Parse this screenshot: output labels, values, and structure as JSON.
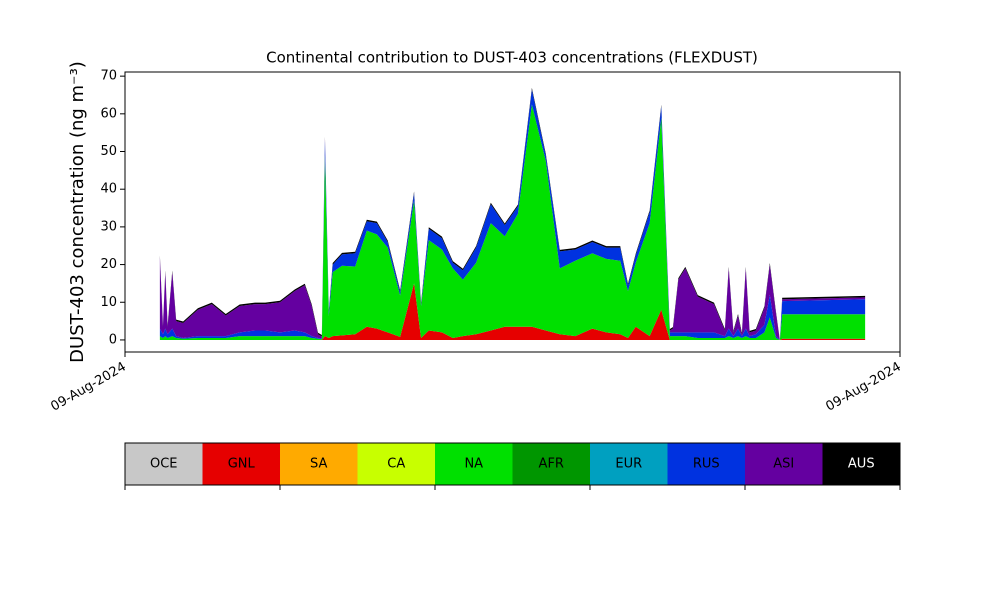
{
  "chart_data": {
    "type": "stacked_area",
    "title": "Continental contribution to DUST-403 concentrations (FLEXDUST)",
    "ylabel": "DUST-403 concentration (ng m⁻³)",
    "xlim": [
      0,
      100
    ],
    "xticks": [
      {
        "value": 0,
        "label": "09-Aug-2024"
      },
      {
        "value": 100,
        "label": "09-Aug-2024"
      }
    ],
    "ylim": [
      -3.2,
      71.1
    ],
    "yticks": [
      0,
      10,
      20,
      30,
      40,
      50,
      60,
      70
    ],
    "x": [
      4.5,
      4.9,
      5.2,
      5.5,
      6.1,
      6.6,
      7.5,
      9.4,
      11.2,
      13.0,
      14.8,
      16.8,
      18.1,
      20.0,
      21.9,
      23.2,
      24.1,
      24.9,
      25.4,
      25.8,
      26.3,
      26.8,
      28.0,
      29.7,
      31.2,
      32.5,
      33.9,
      35.5,
      37.3,
      38.2,
      39.2,
      40.9,
      42.3,
      43.6,
      45.3,
      47.2,
      49.0,
      50.7,
      52.5,
      54.3,
      56.1,
      58.1,
      60.3,
      62.1,
      63.9,
      64.9,
      65.9,
      67.7,
      69.2,
      70.3,
      70.7,
      71.4,
      72.3,
      73.9,
      76.0,
      77.4,
      77.9,
      78.5,
      79.1,
      79.6,
      80.1,
      80.6,
      81.4,
      82.5,
      83.2,
      84.0,
      84.5,
      84.8,
      95.5
    ],
    "series": [
      {
        "name": "OCE",
        "color": "#c8c8c8",
        "values": [
          0,
          0,
          0,
          0,
          0,
          0,
          0,
          0,
          0,
          0,
          0,
          0,
          0,
          0,
          0,
          0,
          0,
          0,
          0,
          0,
          0,
          0,
          0,
          0,
          0,
          0,
          0,
          0,
          0,
          0,
          0,
          0,
          0,
          0,
          0,
          0,
          0,
          0,
          0,
          0,
          0,
          0,
          0,
          0,
          0,
          0,
          0,
          0,
          0,
          0,
          0,
          0,
          0,
          0,
          0,
          0,
          0,
          0,
          0,
          0,
          0,
          0,
          0,
          0,
          0,
          0,
          0,
          0,
          0
        ]
      },
      {
        "name": "GNL",
        "color": "#e60000",
        "values": [
          0,
          0,
          0,
          0,
          0,
          0,
          0,
          0,
          0,
          0,
          0,
          0,
          0,
          0,
          0,
          0,
          0,
          0,
          0,
          1,
          0.5,
          1,
          1.2,
          1.5,
          3.5,
          3,
          2,
          0.8,
          15,
          0.5,
          2.5,
          2,
          0.5,
          1,
          1.5,
          2.5,
          3.5,
          3.5,
          3.5,
          2.5,
          1.5,
          1,
          3,
          2,
          1.5,
          0.5,
          3.5,
          1,
          8,
          0,
          0,
          0,
          0,
          0,
          0,
          0,
          0,
          0,
          0,
          0,
          0,
          0,
          0,
          0,
          0,
          0,
          0,
          0.3,
          0.3
        ]
      },
      {
        "name": "SA",
        "color": "#ffaa00",
        "values": [
          0,
          0,
          0,
          0,
          0,
          0,
          0,
          0,
          0,
          0,
          0,
          0,
          0,
          0,
          0,
          0,
          0,
          0,
          0,
          0,
          0,
          0,
          0,
          0,
          0,
          0,
          0,
          0,
          0,
          0,
          0,
          0,
          0,
          0,
          0,
          0,
          0,
          0,
          0,
          0,
          0,
          0,
          0,
          0,
          0,
          0,
          0,
          0,
          0,
          0,
          0,
          0,
          0,
          0,
          0,
          0,
          0,
          0,
          0,
          0,
          0,
          0,
          0,
          0,
          0,
          0,
          0,
          0,
          0
        ]
      },
      {
        "name": "CA",
        "color": "#c8ff00",
        "values": [
          0,
          0,
          0,
          0,
          0,
          0,
          0,
          0,
          0,
          0,
          0,
          0,
          0,
          0,
          0,
          0,
          0,
          0,
          0,
          0,
          0,
          0,
          0,
          0,
          0,
          0,
          0,
          0,
          0,
          0,
          0,
          0,
          0,
          0,
          0,
          0,
          0,
          0,
          0,
          0,
          0,
          0,
          0,
          0,
          0,
          0,
          0,
          0,
          0,
          0,
          0,
          0,
          0,
          0,
          0,
          0,
          0,
          0,
          0,
          0,
          0,
          0,
          0,
          0,
          0,
          0,
          0,
          0,
          0
        ]
      },
      {
        "name": "NA",
        "color": "#00e000",
        "values": [
          1,
          0.5,
          1,
          0.5,
          1,
          0.5,
          0.3,
          0.5,
          0.5,
          0.5,
          1,
          1,
          1,
          1,
          1,
          1,
          0.5,
          0.3,
          0.2,
          48,
          6,
          17,
          18.5,
          18,
          25.5,
          25,
          22.5,
          11,
          22,
          8.5,
          24,
          22,
          18.5,
          15,
          19,
          28.5,
          24,
          30,
          59,
          45,
          17.5,
          20,
          20,
          19.5,
          19.5,
          12.5,
          17,
          30,
          51,
          1,
          1,
          1,
          1,
          0.5,
          0.5,
          0.5,
          1,
          0.5,
          1,
          0.5,
          1,
          0.5,
          0.5,
          2,
          6,
          0.5,
          0,
          6.5,
          6.5
        ]
      },
      {
        "name": "AFR",
        "color": "#009600",
        "values": [
          0,
          0,
          0,
          0,
          0,
          0,
          0,
          0,
          0,
          0,
          0,
          0,
          0,
          0,
          0,
          0,
          0,
          0,
          0,
          0,
          0,
          0,
          0,
          0,
          0,
          0,
          0,
          0,
          0,
          0,
          0,
          0,
          0,
          0,
          0,
          0,
          0,
          0,
          0,
          0,
          0,
          0,
          0,
          0,
          0,
          0,
          0,
          0,
          0,
          0,
          0,
          0,
          0,
          0,
          0,
          0,
          0,
          0,
          0,
          0,
          0,
          0,
          0,
          0,
          0,
          0,
          0,
          0,
          0
        ]
      },
      {
        "name": "EUR",
        "color": "#00a0c0",
        "values": [
          0,
          0,
          0,
          0,
          0,
          0,
          0,
          0,
          0,
          0,
          0,
          0,
          0,
          0,
          0,
          0,
          0,
          0,
          0,
          0,
          0,
          0,
          0,
          0,
          0,
          0,
          0,
          0,
          0,
          0,
          0,
          0,
          0,
          0,
          0,
          0,
          0,
          0,
          0,
          0,
          0,
          0,
          0,
          0,
          0,
          0,
          0,
          0,
          0,
          0,
          0,
          0,
          0,
          0,
          0,
          0,
          0,
          0,
          0,
          0,
          0,
          0,
          0,
          0,
          0,
          0,
          0,
          0,
          0
        ]
      },
      {
        "name": "RUS",
        "color": "#0032e0",
        "values": [
          2,
          1,
          2,
          1,
          2,
          0.5,
          0.2,
          0.5,
          0.5,
          0.5,
          1,
          1.5,
          1.5,
          1,
          1.5,
          1,
          0.5,
          0.2,
          0.2,
          4,
          1,
          2,
          3,
          3.5,
          2.5,
          3,
          1.5,
          1,
          2,
          0.5,
          3,
          3,
          1.5,
          2.5,
          4,
          5,
          3,
          2,
          4,
          1.5,
          4.5,
          3,
          3,
          3,
          3.5,
          1.5,
          2,
          3,
          3,
          1,
          1,
          1,
          1,
          1.5,
          1.5,
          0.5,
          2,
          0.5,
          2,
          0.5,
          2,
          0.5,
          1,
          2,
          6,
          0.5,
          0,
          3.5,
          4
        ]
      },
      {
        "name": "ASI",
        "color": "#6400a0",
        "values": [
          19,
          2,
          15,
          2,
          15,
          4,
          4,
          7,
          8.5,
          5.5,
          7,
          7,
          7,
          8,
          10.5,
          12.5,
          8,
          1,
          0.5,
          0.5,
          0,
          0,
          0,
          0,
          0,
          0,
          0,
          0,
          0,
          0,
          0,
          0,
          0,
          0,
          0,
          0,
          0,
          0,
          0,
          0,
          0,
          0,
          0,
          0,
          0,
          0,
          0,
          0,
          0,
          0.5,
          1,
          14,
          17,
          9.5,
          7.5,
          1.5,
          16,
          1,
          3.5,
          0.5,
          16,
          1,
          1,
          4.5,
          8,
          6,
          0,
          0.5,
          0.5
        ]
      },
      {
        "name": "AUS",
        "color": "#000000",
        "values": [
          0.4,
          0.4,
          0.4,
          0.4,
          0.4,
          0.4,
          0.4,
          0.4,
          0.4,
          0.4,
          0.4,
          0.4,
          0.4,
          0.4,
          0.4,
          0.4,
          0.4,
          0.4,
          0.4,
          0.4,
          0.4,
          0.4,
          0.4,
          0.4,
          0.4,
          0.4,
          0.4,
          0.4,
          0.4,
          0.4,
          0.4,
          0.4,
          0.4,
          0.4,
          0.4,
          0.4,
          0.4,
          0.4,
          0.4,
          0.4,
          0.4,
          0.4,
          0.4,
          0.4,
          0.4,
          0.4,
          0.4,
          0.4,
          0.4,
          0.4,
          0.4,
          0.4,
          0.4,
          0.4,
          0.4,
          0.4,
          0.4,
          0.4,
          0.4,
          0.4,
          0.4,
          0.4,
          0.4,
          0.4,
          0.4,
          0.4,
          0,
          0.4,
          0.4
        ]
      }
    ]
  }
}
